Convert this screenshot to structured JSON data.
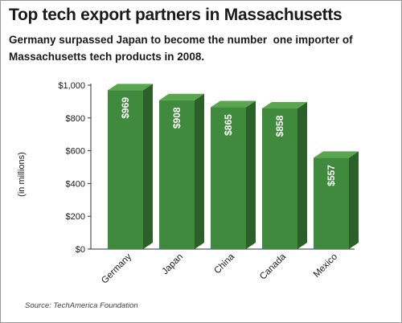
{
  "title": "Top tech export partners in Massachusetts",
  "subtitle": "Germany surpassed Japan to become the number  one importer of\nMassachusetts tech products in 2008.",
  "source": "Source: TechAmerica Foundation",
  "colors": {
    "bar_front": "#3f8a3c",
    "bar_top": "#5aa64f",
    "bar_side": "#2b6128",
    "axis": "#333333",
    "label_text": "#ffffff"
  },
  "chart_data": {
    "type": "bar",
    "categories": [
      "Germany",
      "Japan",
      "China",
      "Canada",
      "Mexico"
    ],
    "values": [
      969,
      908,
      865,
      858,
      557
    ],
    "value_labels": [
      "$969",
      "$908",
      "$865",
      "$858",
      "$557"
    ],
    "ylabel": "(in millions)",
    "ylim": [
      0,
      1000
    ],
    "yticks": [
      0,
      200,
      400,
      600,
      800,
      1000
    ],
    "ytick_labels": [
      "$0",
      "$200",
      "$400",
      "$600",
      "$800",
      "$1,000"
    ],
    "grid": false,
    "three_d": true
  }
}
